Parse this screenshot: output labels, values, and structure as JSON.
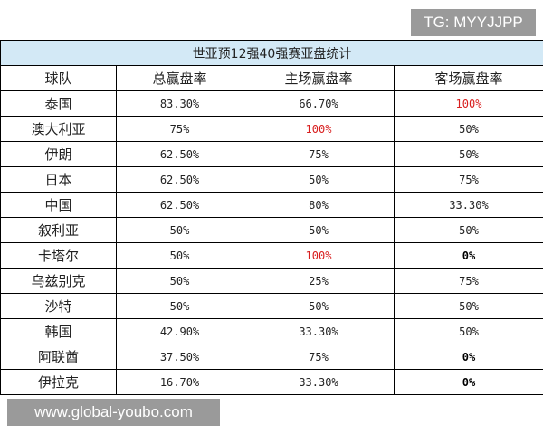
{
  "watermark_top": "TG: MYYJJPP",
  "watermark_bottom": "www.global-youbo.com",
  "table": {
    "title": "世亚预12强40强赛亚盘统计",
    "headers": [
      "球队",
      "总赢盘率",
      "主场赢盘率",
      "客场赢盘率"
    ],
    "rows": [
      {
        "team": "泰国",
        "total": "83.30%",
        "home": "66.70%",
        "away": "100%"
      },
      {
        "team": "澳大利亚",
        "total": "75%",
        "home": "100%",
        "away": "50%"
      },
      {
        "team": "伊朗",
        "total": "62.50%",
        "home": "75%",
        "away": "50%"
      },
      {
        "team": "日本",
        "total": "62.50%",
        "home": "50%",
        "away": "75%"
      },
      {
        "team": "中国",
        "total": "62.50%",
        "home": "80%",
        "away": "33.30%"
      },
      {
        "team": "叙利亚",
        "total": "50%",
        "home": "50%",
        "away": "50%"
      },
      {
        "team": "卡塔尔",
        "total": "50%",
        "home": "100%",
        "away": "0%"
      },
      {
        "team": "乌兹别克",
        "total": "50%",
        "home": "25%",
        "away": "75%"
      },
      {
        "team": "沙特",
        "total": "50%",
        "home": "50%",
        "away": "50%"
      },
      {
        "team": "韩国",
        "total": "42.90%",
        "home": "33.30%",
        "away": "50%"
      },
      {
        "team": "阿联酋",
        "total": "37.50%",
        "home": "75%",
        "away": "0%"
      },
      {
        "team": "伊拉克",
        "total": "16.70%",
        "home": "33.30%",
        "away": "0%"
      }
    ]
  },
  "colors": {
    "title_background": "#d3e9f6",
    "highlight_red": "#d81e1e",
    "watermark_background": "#9a9a9a"
  }
}
